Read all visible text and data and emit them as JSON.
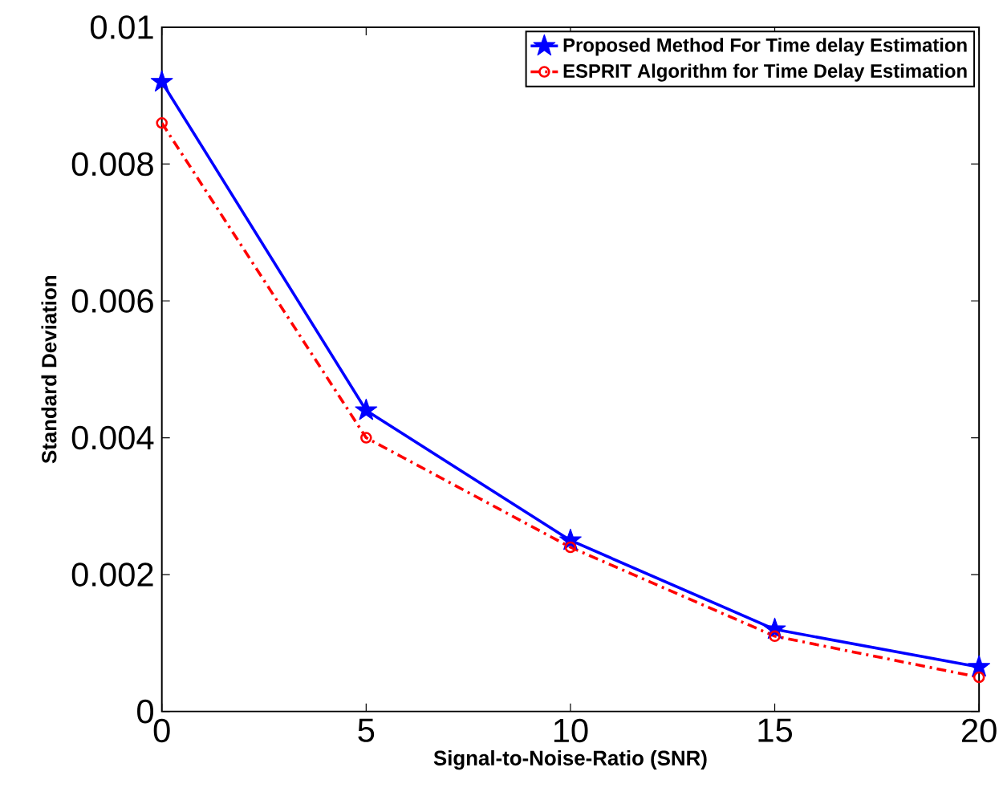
{
  "chart_data": {
    "type": "line",
    "xlabel": "Signal-to-Noise-Ratio (SNR)",
    "ylabel": "Standard Deviation",
    "x": [
      0,
      5,
      10,
      15,
      20
    ],
    "series": [
      {
        "name": "Proposed Method For Time delay Estimation",
        "color": "#0000ff",
        "marker": "star",
        "line_style": "solid",
        "values": [
          0.0092,
          0.0044,
          0.0025,
          0.0012,
          0.00065
        ]
      },
      {
        "name": "ESPRIT Algorithm for Time Delay Estimation",
        "color": "#ff0000",
        "marker": "circle",
        "line_style": "dashdot",
        "values": [
          0.0086,
          0.004,
          0.0024,
          0.0011,
          0.0005
        ]
      }
    ],
    "xlim": [
      0,
      20
    ],
    "ylim": [
      0,
      0.01
    ],
    "xticks": [
      0,
      5,
      10,
      15,
      20
    ],
    "yticks": [
      0,
      0.002,
      0.004,
      0.006,
      0.008,
      0.01
    ],
    "grid": false,
    "legend": "top right"
  }
}
